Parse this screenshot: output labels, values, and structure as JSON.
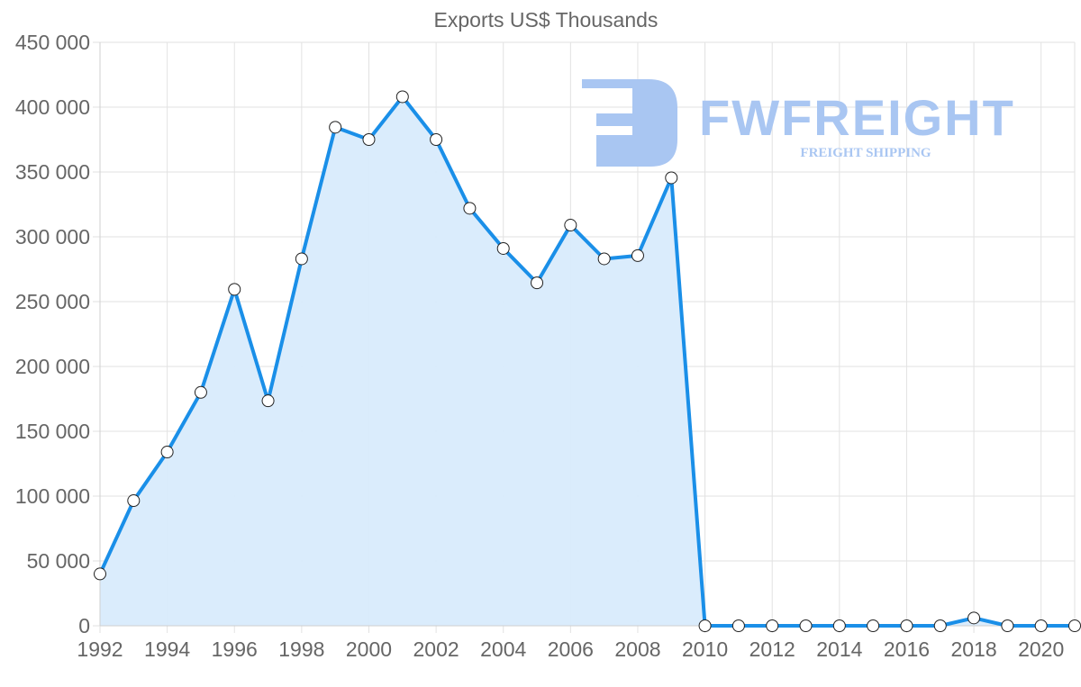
{
  "chart_data": {
    "type": "area",
    "title": "Exports US$ Thousands",
    "xlabel": "",
    "ylabel": "",
    "ylim": [
      0,
      450000
    ],
    "xlim": [
      1992,
      2021
    ],
    "grid": true,
    "legend": "none",
    "yticks": [
      "0",
      "50 000",
      "100 000",
      "150 000",
      "200 000",
      "250 000",
      "300 000",
      "350 000",
      "400 000",
      "450 000"
    ],
    "ytick_values": [
      0,
      50000,
      100000,
      150000,
      200000,
      250000,
      300000,
      350000,
      400000,
      450000
    ],
    "xticks": [
      "1992",
      "1994",
      "1996",
      "1998",
      "2000",
      "2002",
      "2004",
      "2006",
      "2008",
      "2010",
      "2012",
      "2014",
      "2016",
      "2018",
      "2020"
    ],
    "x": [
      1992,
      1993,
      1994,
      1995,
      1996,
      1997,
      1998,
      1999,
      2000,
      2001,
      2002,
      2003,
      2004,
      2005,
      2006,
      2007,
      2008,
      2009,
      2010,
      2011,
      2012,
      2013,
      2014,
      2015,
      2016,
      2017,
      2018,
      2019,
      2020,
      2021
    ],
    "series": [
      {
        "name": "Exports US$ Thousands",
        "color": "#1a8fe8",
        "fill": "#d8ebfc",
        "values": [
          40000,
          96500,
          134000,
          180000,
          259500,
          173500,
          283000,
          384500,
          375000,
          408000,
          375000,
          322000,
          291000,
          264500,
          309000,
          283000,
          285500,
          345500,
          0,
          0,
          0,
          0,
          0,
          0,
          0,
          0,
          6000,
          0,
          0,
          0
        ]
      }
    ]
  },
  "watermark": {
    "brand": "FWFREIGHT",
    "tagline": "FREIGHT SHIPPING",
    "color": "#a9c6f2"
  }
}
